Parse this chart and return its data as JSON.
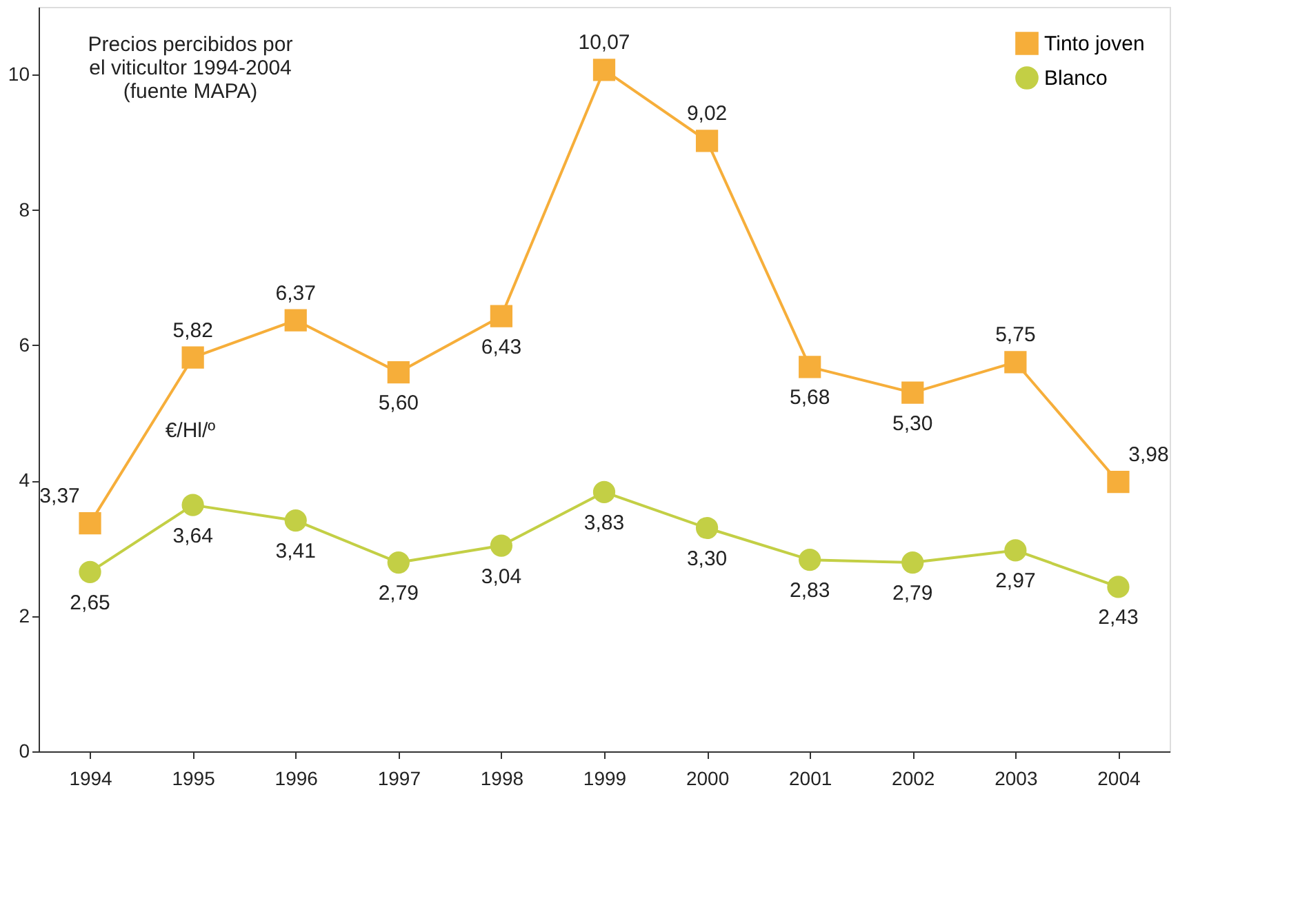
{
  "chart_data": {
    "type": "line",
    "categories": [
      "1994",
      "1995",
      "1996",
      "1997",
      "1998",
      "1999",
      "2000",
      "2001",
      "2002",
      "2003",
      "2004"
    ],
    "series": [
      {
        "name": "Tinto joven",
        "color": "#f6ae3a",
        "marker": "square",
        "values": [
          3.37,
          5.82,
          6.37,
          5.6,
          6.43,
          10.07,
          9.02,
          5.68,
          5.3,
          5.75,
          3.98
        ],
        "value_labels": [
          "3,37",
          "5,82",
          "6,37",
          "5,60",
          "6,43",
          "10,07",
          "9,02",
          "5,68",
          "5,30",
          "5,75",
          "3,98"
        ]
      },
      {
        "name": "Blanco",
        "color": "#c3cf45",
        "marker": "circle",
        "values": [
          2.65,
          3.64,
          3.41,
          2.79,
          3.04,
          3.83,
          3.3,
          2.83,
          2.79,
          2.97,
          2.43
        ],
        "value_labels": [
          "2,65",
          "3,64",
          "3,41",
          "2,79",
          "3,04",
          "3,83",
          "3,30",
          "2,83",
          "2,79",
          "2,97",
          "2,43"
        ]
      }
    ],
    "ylim": [
      0,
      11
    ],
    "yticks": [
      0,
      2,
      4,
      6,
      8,
      10
    ],
    "grid": false,
    "legend": "top right",
    "line_style": "solid",
    "annotations": [
      "Precios percibidos por\nel viticultor 1994-2004\n(fuente MAPA)",
      "€/Hl/º"
    ]
  }
}
